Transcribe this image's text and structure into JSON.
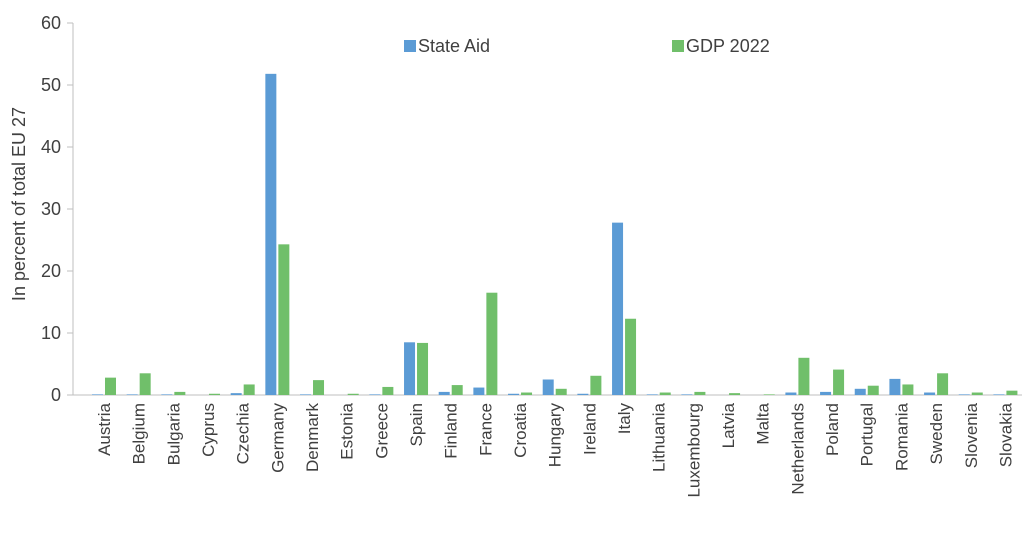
{
  "chart_data": {
    "type": "bar",
    "title": "",
    "xlabel": "",
    "ylabel": "In percent of total EU 27",
    "ylim": [
      0,
      60
    ],
    "yticks": [
      0,
      10,
      20,
      30,
      40,
      50,
      60
    ],
    "grid": false,
    "legend_position": "top-center",
    "categories": [
      "Austria",
      "Belgium",
      "Bulgaria",
      "Cyprus",
      "Czechia",
      "Germany",
      "Denmark",
      "Estonia",
      "Greece",
      "Spain",
      "Finland",
      "France",
      "Croatia",
      "Hungary",
      "Ireland",
      "Italy",
      "Lithuania",
      "Luxembourg",
      "Latvia",
      "Malta",
      "Netherlands",
      "Poland",
      "Portugal",
      "Romania",
      "Sweden",
      "Slovenia",
      "Slovakia"
    ],
    "series": [
      {
        "name": "State Aid",
        "color": "#5B9BD5",
        "values": [
          0.1,
          0.1,
          0.1,
          0.0,
          0.3,
          51.8,
          0.1,
          0.0,
          0.1,
          8.5,
          0.5,
          1.2,
          0.2,
          2.5,
          0.2,
          27.8,
          0.1,
          0.1,
          0.0,
          0.0,
          0.4,
          0.5,
          1.0,
          2.6,
          0.4,
          0.1,
          0.1
        ]
      },
      {
        "name": "GDP 2022",
        "color": "#70BF6A",
        "values": [
          2.8,
          3.5,
          0.5,
          0.2,
          1.7,
          24.3,
          2.4,
          0.2,
          1.3,
          8.4,
          1.6,
          16.5,
          0.4,
          1.0,
          3.1,
          12.3,
          0.4,
          0.5,
          0.3,
          0.1,
          6.0,
          4.1,
          1.5,
          1.7,
          3.5,
          0.4,
          0.7
        ]
      }
    ]
  }
}
